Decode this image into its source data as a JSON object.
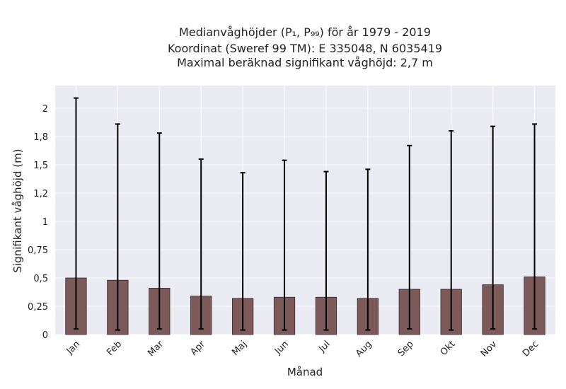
{
  "chart_data": {
    "type": "bar",
    "title_lines": [
      "Medianvåghöjder (P₁, P₉₉) för år 1979 - 2019",
      "Koordinat (Sweref 99 TM): E 335048, N 6035419",
      "Maximal beräknad signifikant våghöjd: 2,7 m"
    ],
    "xlabel": "Månad",
    "ylabel": "Signifikant våghöjd (m)",
    "categories": [
      "Jan",
      "Feb",
      "Mar",
      "Apr",
      "Maj",
      "Jun",
      "Jul",
      "Aug",
      "Sep",
      "Okt",
      "Nov",
      "Dec"
    ],
    "values": [
      0.5,
      0.48,
      0.41,
      0.34,
      0.32,
      0.33,
      0.33,
      0.32,
      0.4,
      0.4,
      0.44,
      0.51
    ],
    "error_low": [
      0.05,
      0.04,
      0.05,
      0.05,
      0.04,
      0.04,
      0.04,
      0.04,
      0.05,
      0.04,
      0.05,
      0.05
    ],
    "error_high": [
      2.09,
      1.86,
      1.78,
      1.55,
      1.43,
      1.54,
      1.44,
      1.46,
      1.67,
      1.8,
      1.84,
      1.86
    ],
    "yticks": [
      0,
      0.25,
      0.5,
      0.75,
      1,
      1.25,
      1.5,
      1.75,
      2
    ],
    "ytick_labels": [
      "0",
      "0,25",
      "0,5",
      "0,75",
      "1",
      "1,2",
      "1,5",
      "1,8",
      "2"
    ],
    "ylim": [
      0,
      2.2
    ],
    "grid": true,
    "colors": {
      "bar_fill": "#7d5a5a",
      "bar_edge": "#3a2a2a",
      "error_bar": "#000000",
      "plot_background": "#eaeaf2",
      "grid": "#ffffff"
    }
  }
}
